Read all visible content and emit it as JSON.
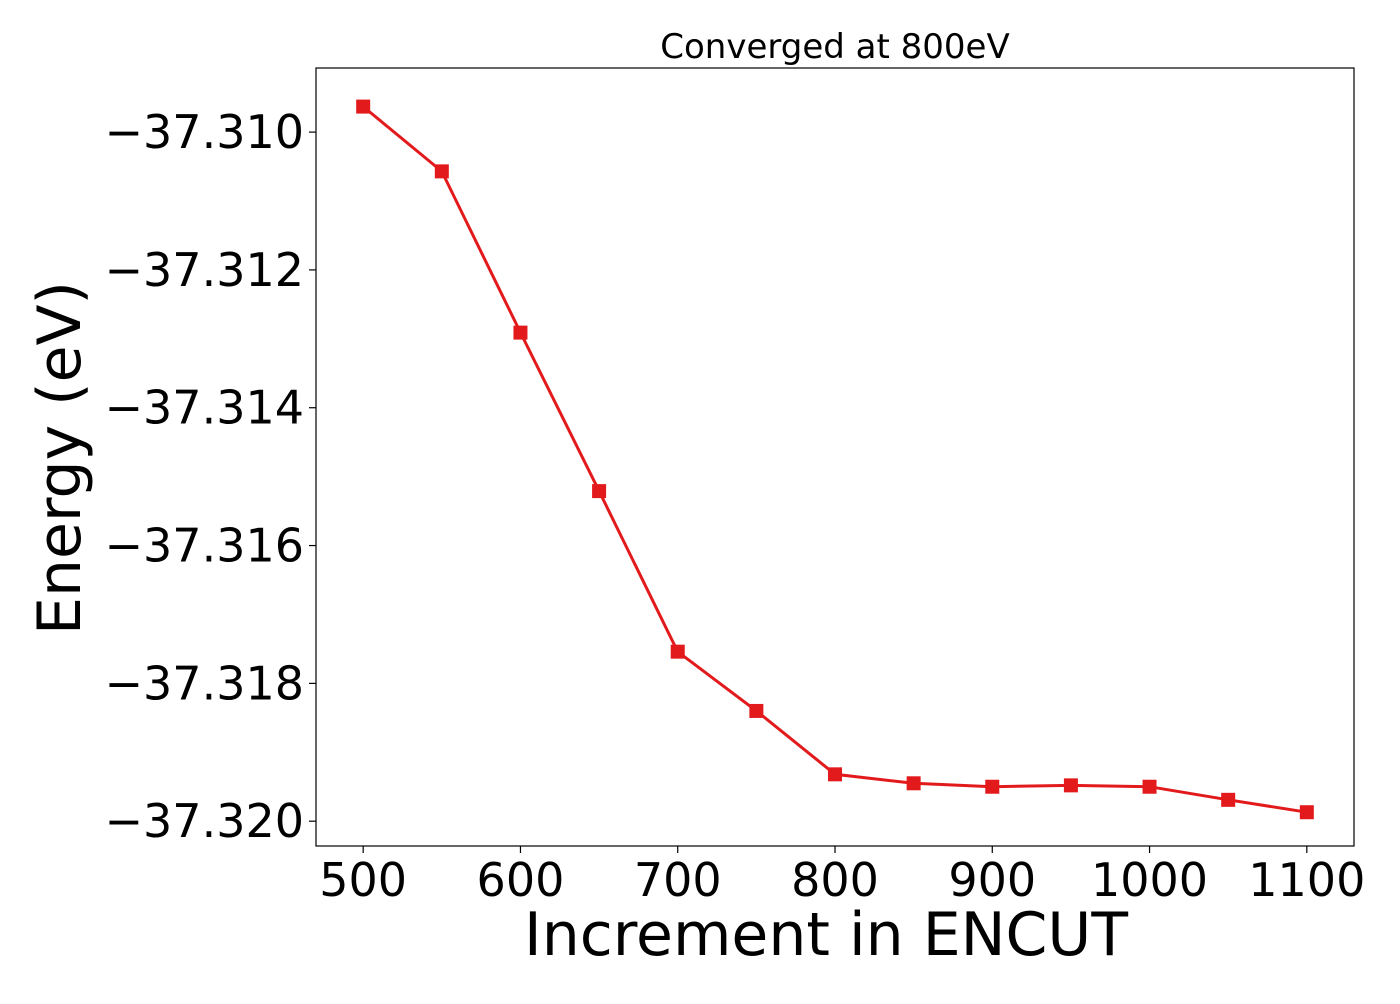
{
  "chart_data": {
    "type": "line",
    "title": "Converged at 800eV",
    "xlabel": "Increment in ENCUT",
    "ylabel": "Energy (eV)",
    "x": [
      500,
      550,
      600,
      650,
      700,
      750,
      800,
      850,
      900,
      950,
      1000,
      1050,
      1100
    ],
    "series": [
      {
        "values": [
          -37.30963,
          -37.31057,
          -37.31291,
          -37.31521,
          -37.31754,
          -37.3184,
          -37.31932,
          -37.31945,
          -37.3195,
          -37.31948,
          -37.3195,
          -37.31969,
          -37.31987
        ],
        "color": "#e31a1c",
        "marker": "square"
      }
    ],
    "xlim": [
      470,
      1130
    ],
    "ylim": [
      -37.32036,
      -37.30907
    ],
    "xticks": [
      500,
      600,
      700,
      800,
      900,
      1000,
      1100
    ],
    "xtick_labels": [
      "500",
      "600",
      "700",
      "800",
      "900",
      "1000",
      "1100"
    ],
    "yticks": [
      -37.31,
      -37.312,
      -37.314,
      -37.316,
      -37.318,
      -37.32
    ],
    "ytick_labels": [
      "−37.310",
      "−37.312",
      "−37.314",
      "−37.316",
      "−37.318",
      "−37.320"
    ],
    "grid": false,
    "legend": "none"
  }
}
